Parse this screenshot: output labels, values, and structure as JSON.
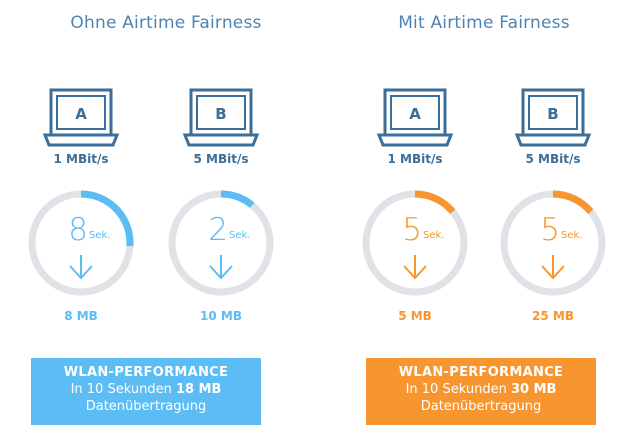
{
  "panels": [
    {
      "title": "Ohne Airtime Fairness",
      "accent": "#5bbdf4",
      "devices": [
        {
          "label": "A",
          "speed": "1 MBit/s",
          "seconds": "8",
          "unit": "Sek.",
          "size": "8 MB",
          "progress": 0.26
        },
        {
          "label": "B",
          "speed": "5 MBit/s",
          "seconds": "2",
          "unit": "Sek.",
          "size": "10 MB",
          "progress": 0.11
        }
      ],
      "summary": {
        "heading": "WLAN-PERFORMANCE",
        "prefix": "In 10 Sekunden ",
        "value": "18 MB",
        "suffix": "Datenübertragung"
      }
    },
    {
      "title": "Mit Airtime Fairness",
      "accent": "#f7962f",
      "devices": [
        {
          "label": "A",
          "speed": "1 MBit/s",
          "seconds": "5",
          "unit": "Sek.",
          "size": "5 MB",
          "progress": 0.14
        },
        {
          "label": "B",
          "speed": "5 MBit/s",
          "seconds": "5",
          "unit": "Sek.",
          "size": "25 MB",
          "progress": 0.14
        }
      ],
      "summary": {
        "heading": "WLAN-PERFORMANCE",
        "prefix": "In 10 Sekunden ",
        "value": "30 MB",
        "suffix": "Datenübertragung"
      }
    }
  ],
  "colors": {
    "device_stroke": "#3c6e98",
    "ring_track": "#dfe2e6"
  },
  "icons": {
    "device": "laptop-icon",
    "arrow": "arrow-down-icon"
  }
}
